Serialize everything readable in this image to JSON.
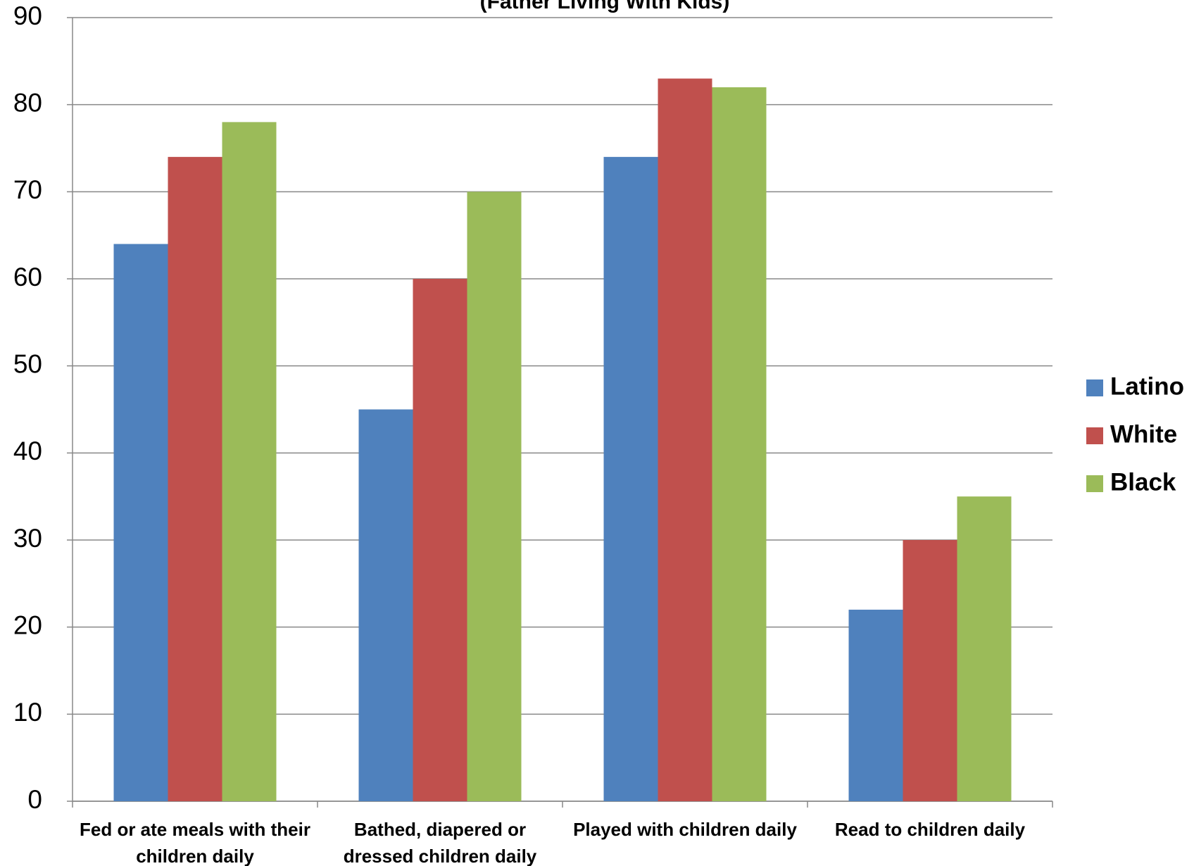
{
  "chart_data": {
    "type": "bar",
    "title": "(Father Living With Kids)",
    "categories": [
      "Fed or ate meals with their children daily",
      "Bathed, diapered or dressed children daily",
      "Played with children daily",
      "Read to children daily"
    ],
    "series": [
      {
        "name": "Latino",
        "color": "#4f81bd",
        "values": [
          64,
          45,
          74,
          22
        ]
      },
      {
        "name": "White",
        "color": "#c0504d",
        "values": [
          74,
          60,
          83,
          30
        ]
      },
      {
        "name": "Black",
        "color": "#9bbb59",
        "values": [
          78,
          70,
          82,
          35
        ]
      }
    ],
    "ylim": [
      0,
      90
    ],
    "yticks": [
      0,
      10,
      20,
      30,
      40,
      50,
      60,
      70,
      80,
      90
    ],
    "grid": true,
    "legend": "right"
  }
}
